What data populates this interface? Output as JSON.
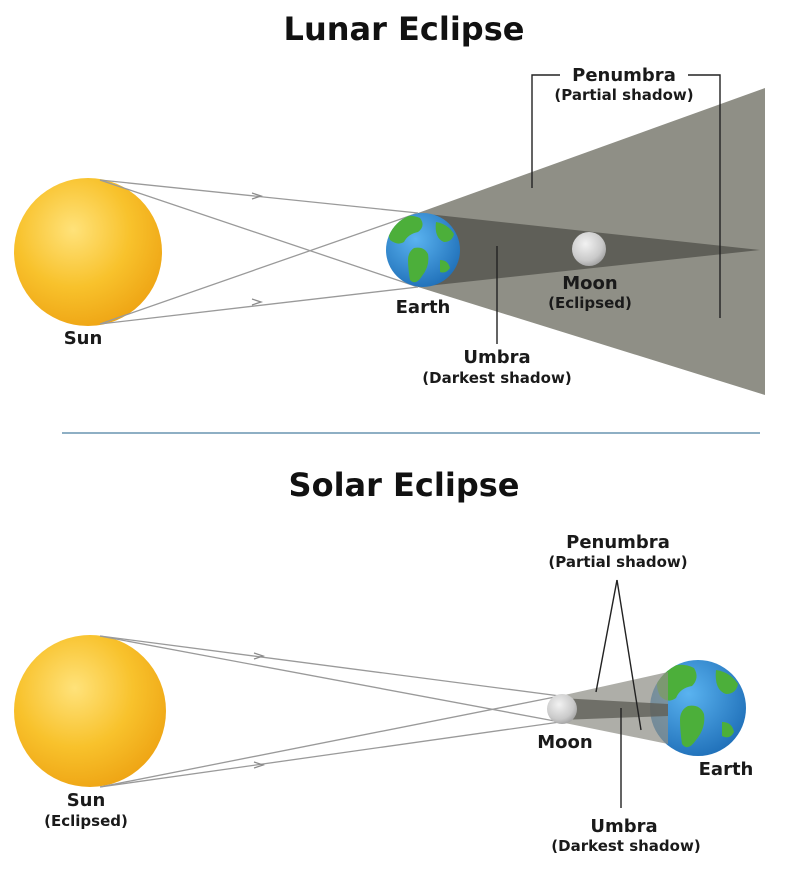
{
  "lunar": {
    "title": "Lunar Eclipse",
    "sun": "Sun",
    "earth": "Earth",
    "moon": "Moon",
    "moon_sub": "(Eclipsed)",
    "penumbra": "Penumbra",
    "penumbra_sub": "(Partial shadow)",
    "umbra": "Umbra",
    "umbra_sub": "(Darkest shadow)"
  },
  "solar": {
    "title": "Solar Eclipse",
    "sun": "Sun",
    "sun_sub": "(Eclipsed)",
    "moon": "Moon",
    "earth": "Earth",
    "penumbra": "Penumbra",
    "penumbra_sub": "(Partial shadow)",
    "umbra": "Umbra",
    "umbra_sub": "(Darkest shadow)"
  },
  "colors": {
    "sun": "#f6b91d",
    "penumbra": "#8d8d84",
    "umbra": "#5e5e57",
    "ocean": "#2f8fd8",
    "land": "#4caf3a",
    "moon": "#cfcfcf",
    "divider": "#4a7fa0"
  }
}
